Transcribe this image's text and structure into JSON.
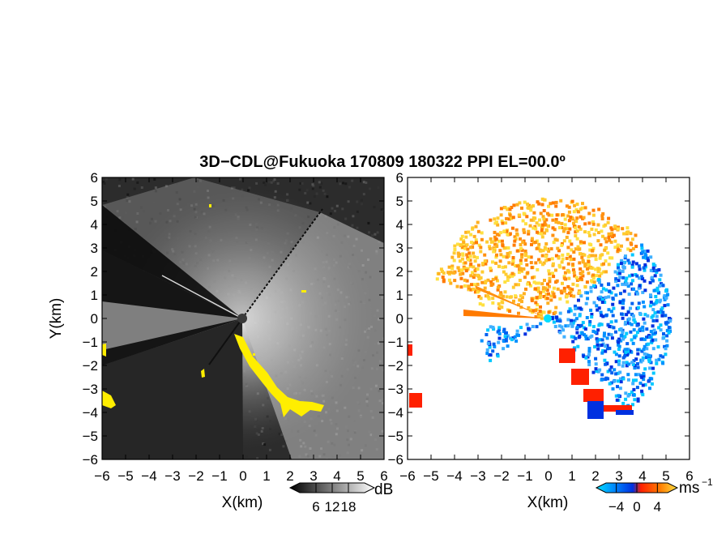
{
  "figure": {
    "title": "3D−CDL@Fukuoka 170809 180322 PPI EL=00.0º"
  },
  "chart_data": [
    {
      "type": "heatmap",
      "name": "reflectivity-ppi",
      "xlabel": "X(km)",
      "ylabel": "Y(km)",
      "xlim": [
        -6,
        6
      ],
      "ylim": [
        -6,
        6
      ],
      "x_ticks": [
        "−6",
        "−5",
        "−4",
        "−3",
        "−2",
        "−1",
        "0",
        "1",
        "2",
        "3",
        "4",
        "5",
        "6"
      ],
      "y_ticks": [
        "−6",
        "−5",
        "−4",
        "−3",
        "−2",
        "−1",
        "0",
        "1",
        "2",
        "3",
        "4",
        "5",
        "6"
      ],
      "colorbar": {
        "unit": "dB",
        "tick_labels": [
          "6",
          "12",
          "18"
        ],
        "ticks": [
          6,
          12,
          18
        ],
        "range": [
          0,
          24
        ],
        "colors": [
          "#000000",
          "#ffffff"
        ]
      },
      "highlight_color": "#ffee00"
    },
    {
      "type": "heatmap",
      "name": "doppler-velocity-ppi",
      "xlabel": "X(km)",
      "xlim": [
        -6,
        6
      ],
      "ylim": [
        -6,
        6
      ],
      "x_ticks": [
        "−6",
        "−5",
        "−4",
        "−3",
        "−2",
        "−1",
        "0",
        "1",
        "2",
        "3",
        "4",
        "5",
        "6"
      ],
      "y_ticks": [
        "−6",
        "−5",
        "−4",
        "−3",
        "−2",
        "−1",
        "0",
        "1",
        "2",
        "3",
        "4",
        "5",
        "6"
      ],
      "colorbar": {
        "unit": "ms",
        "unit_exponent": "−1",
        "tick_labels": [
          "−4",
          "0",
          "4"
        ],
        "ticks": [
          -4,
          0,
          4
        ],
        "range": [
          -6,
          6
        ],
        "colors": [
          "#00e0ff",
          "#0090ff",
          "#0030e0",
          "#ff2000",
          "#ff7a00",
          "#ffe040"
        ]
      }
    }
  ]
}
